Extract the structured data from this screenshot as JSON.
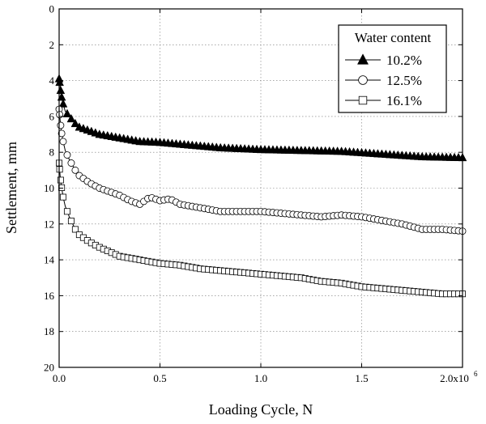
{
  "chart_data": {
    "type": "line",
    "title": "",
    "xlabel": "Loading Cycle, N",
    "ylabel": "Settlement, mm",
    "xlim": [
      0,
      2000000
    ],
    "ylim": [
      0,
      20
    ],
    "y_inverted": true,
    "grid": true,
    "legend_position": "top-right",
    "legend_title": "Water content",
    "x_ticks": [
      {
        "value": 0,
        "label": "0.0"
      },
      {
        "value": 500000,
        "label": "0.5"
      },
      {
        "value": 1000000,
        "label": "1.0"
      },
      {
        "value": 1500000,
        "label": "1.5"
      },
      {
        "value": 2000000,
        "label": "2.0x10"
      }
    ],
    "x_tick_exponent": "6",
    "y_ticks": [
      0,
      2,
      4,
      6,
      8,
      10,
      12,
      14,
      16,
      18,
      20
    ],
    "series": [
      {
        "name": "10.2%",
        "marker": "filled-triangle",
        "x": [
          0,
          5000,
          10000,
          20000,
          30000,
          50000,
          80000,
          100000,
          150000,
          200000,
          300000,
          400000,
          500000,
          600000,
          800000,
          1000000,
          1200000,
          1400000,
          1600000,
          1800000,
          2000000
        ],
        "y": [
          3.9,
          4.3,
          4.8,
          5.3,
          5.7,
          6.0,
          6.4,
          6.6,
          6.8,
          7.0,
          7.2,
          7.4,
          7.45,
          7.55,
          7.75,
          7.85,
          7.9,
          7.95,
          8.1,
          8.25,
          8.3
        ]
      },
      {
        "name": "12.5%",
        "marker": "open-circle",
        "x": [
          0,
          5000,
          10000,
          20000,
          30000,
          50000,
          80000,
          100000,
          150000,
          200000,
          300000,
          350000,
          400000,
          450000,
          500000,
          550000,
          600000,
          700000,
          800000,
          900000,
          1000000,
          1100000,
          1200000,
          1300000,
          1400000,
          1500000,
          1600000,
          1700000,
          1800000,
          1900000,
          2000000
        ],
        "y": [
          5.6,
          6.2,
          6.8,
          7.4,
          7.9,
          8.4,
          9.0,
          9.3,
          9.7,
          10.0,
          10.4,
          10.7,
          10.9,
          10.5,
          10.7,
          10.6,
          10.9,
          11.1,
          11.3,
          11.3,
          11.3,
          11.4,
          11.5,
          11.6,
          11.5,
          11.6,
          11.8,
          12.0,
          12.3,
          12.3,
          12.4
        ]
      },
      {
        "name": "16.1%",
        "marker": "open-square",
        "x": [
          0,
          5000,
          10000,
          20000,
          30000,
          50000,
          80000,
          100000,
          150000,
          200000,
          300000,
          400000,
          500000,
          600000,
          700000,
          800000,
          900000,
          1000000,
          1100000,
          1200000,
          1300000,
          1400000,
          1500000,
          1600000,
          1700000,
          1800000,
          1900000,
          2000000
        ],
        "y": [
          8.6,
          9.3,
          9.8,
          10.5,
          11.0,
          11.6,
          12.3,
          12.6,
          13.0,
          13.3,
          13.8,
          14.0,
          14.2,
          14.3,
          14.5,
          14.6,
          14.7,
          14.8,
          14.9,
          15.0,
          15.2,
          15.3,
          15.5,
          15.6,
          15.7,
          15.8,
          15.9,
          15.9
        ]
      }
    ]
  }
}
